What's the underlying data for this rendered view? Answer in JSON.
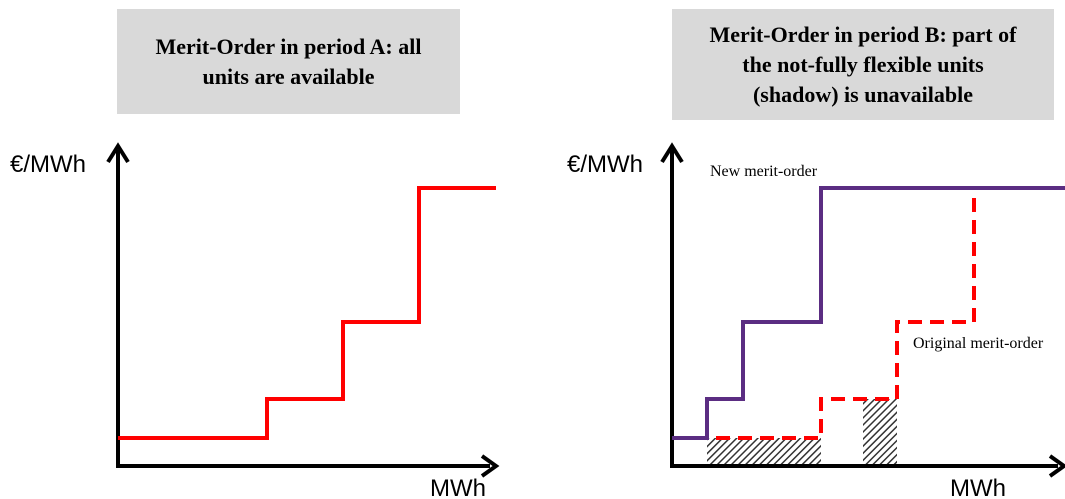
{
  "panel_a": {
    "title_line1": "Merit-Order in period A: all",
    "title_line2": "units are available",
    "y_axis_label": "€/MWh",
    "x_axis_label": "MWh"
  },
  "panel_b": {
    "title_line1": "Merit-Order in period B: part of",
    "title_line2": "the not-fully flexible units",
    "title_line3": "(shadow) is unavailable",
    "y_axis_label": "€/MWh",
    "x_axis_label": "MWh",
    "new_curve_label": "New merit-order",
    "original_curve_label": "Original  merit-order"
  },
  "colors": {
    "red_curve": "#ff0000",
    "purple_curve": "#5b2d82",
    "axis": "#000000",
    "title_bg": "#d9d9d9"
  }
}
